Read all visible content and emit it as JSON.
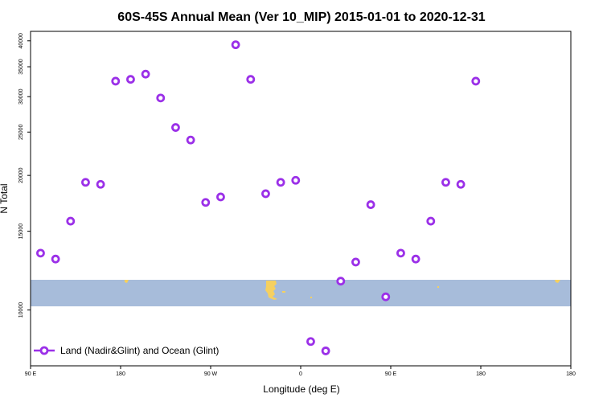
{
  "chart_data": {
    "type": "scatter",
    "title": "60S-45S Annual Mean (Ver 10_MIP)   2015-01-01 to 2020-12-31",
    "xlabel": "Longitude (deg E)",
    "ylabel": "N Total",
    "y_scale": "log",
    "xlim": [
      -90,
      180
    ],
    "ylim": [
      7500,
      42000
    ],
    "x_ticks": [
      {
        "value": -90,
        "label": "90 E"
      },
      {
        "value": -45,
        "label": "180"
      },
      {
        "value": 0,
        "label": "90 W"
      },
      {
        "value": 45,
        "label": "0"
      },
      {
        "value": 90,
        "label": "90 E"
      },
      {
        "value": 135,
        "label": "180"
      }
    ],
    "y_ticks": [
      10000,
      15000,
      20000,
      25000,
      30000,
      35000,
      40000
    ],
    "legend": {
      "label": "Land (Nadir&Glint) and Ocean (Glint)",
      "position": "bottom-left",
      "color": "#9b30e8"
    },
    "series": [
      {
        "name": "Land (Nadir&Glint) and Ocean (Glint)",
        "color": "#9b30e8",
        "x": [
          -85,
          -77.5,
          -70,
          -62.5,
          -55,
          -47.5,
          -40,
          -32.5,
          -25,
          -17.5,
          -10,
          -2.5,
          5,
          12.5,
          20,
          27.5,
          35,
          42.5,
          50,
          57.5,
          65,
          72.5,
          80,
          87.5,
          95,
          102.5,
          110,
          117.5,
          125,
          132.5
        ],
        "y": [
          13400,
          13000,
          15800,
          19300,
          19100,
          32500,
          32800,
          33700,
          29800,
          25600,
          24000,
          17400,
          17900,
          39200,
          32800,
          18200,
          19300,
          19500,
          8500,
          8100,
          11600,
          12800,
          17200,
          10700,
          13400,
          13000,
          15800,
          19300,
          19100,
          32500
        ]
      }
    ]
  },
  "map_overlay": {
    "band_color": "#a7bcda",
    "land_color": "#f5d060"
  }
}
